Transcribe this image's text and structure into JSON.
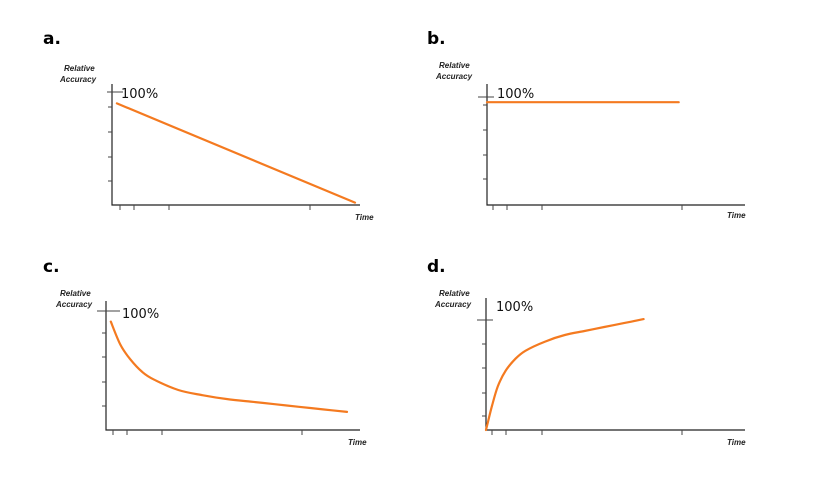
{
  "accent_color": "#f47a20",
  "chart_data": [
    {
      "panel": "a.",
      "type": "line",
      "shape": "linear-decline",
      "ylabel_line1": "Relative",
      "ylabel_line2": "Accuracy",
      "y_marker": "100%",
      "xlabel": "Time",
      "x": [
        0.02,
        1.0
      ],
      "y": [
        0.84,
        0.02
      ],
      "xlim": [
        0,
        1
      ],
      "ylim": [
        0,
        1
      ]
    },
    {
      "panel": "b.",
      "type": "line",
      "shape": "constant",
      "ylabel_line1": "Relative",
      "ylabel_line2": "Accuracy",
      "y_marker": "100%",
      "xlabel": "Time",
      "x": [
        0.0,
        0.9
      ],
      "y": [
        0.85,
        0.85
      ],
      "xlim": [
        0,
        1
      ],
      "ylim": [
        0,
        1
      ]
    },
    {
      "panel": "c.",
      "type": "line",
      "shape": "rapid-decay",
      "ylabel_line1": "Relative",
      "ylabel_line2": "Accuracy",
      "y_marker": "100%",
      "xlabel": "Time",
      "x": [
        0.02,
        0.06,
        0.1,
        0.15,
        0.2,
        0.3,
        0.4,
        0.5,
        0.6,
        0.7,
        0.8,
        0.9,
        1.0
      ],
      "y": [
        0.84,
        0.66,
        0.55,
        0.45,
        0.39,
        0.31,
        0.27,
        0.24,
        0.22,
        0.2,
        0.18,
        0.16,
        0.14
      ],
      "xlim": [
        0,
        1
      ],
      "ylim": [
        0,
        1
      ]
    },
    {
      "panel": "d.",
      "type": "line",
      "shape": "saturating-growth",
      "ylabel_line1": "Relative",
      "ylabel_line2": "Accuracy",
      "y_marker": "100%",
      "xlabel": "Time",
      "x": [
        0.0,
        0.03,
        0.06,
        0.1,
        0.15,
        0.2,
        0.3,
        0.4,
        0.5,
        0.6,
        0.7,
        0.8
      ],
      "y": [
        0.0,
        0.18,
        0.33,
        0.45,
        0.54,
        0.6,
        0.67,
        0.72,
        0.75,
        0.78,
        0.81,
        0.84
      ],
      "xlim": [
        0,
        1
      ],
      "ylim": [
        0,
        1
      ]
    }
  ]
}
